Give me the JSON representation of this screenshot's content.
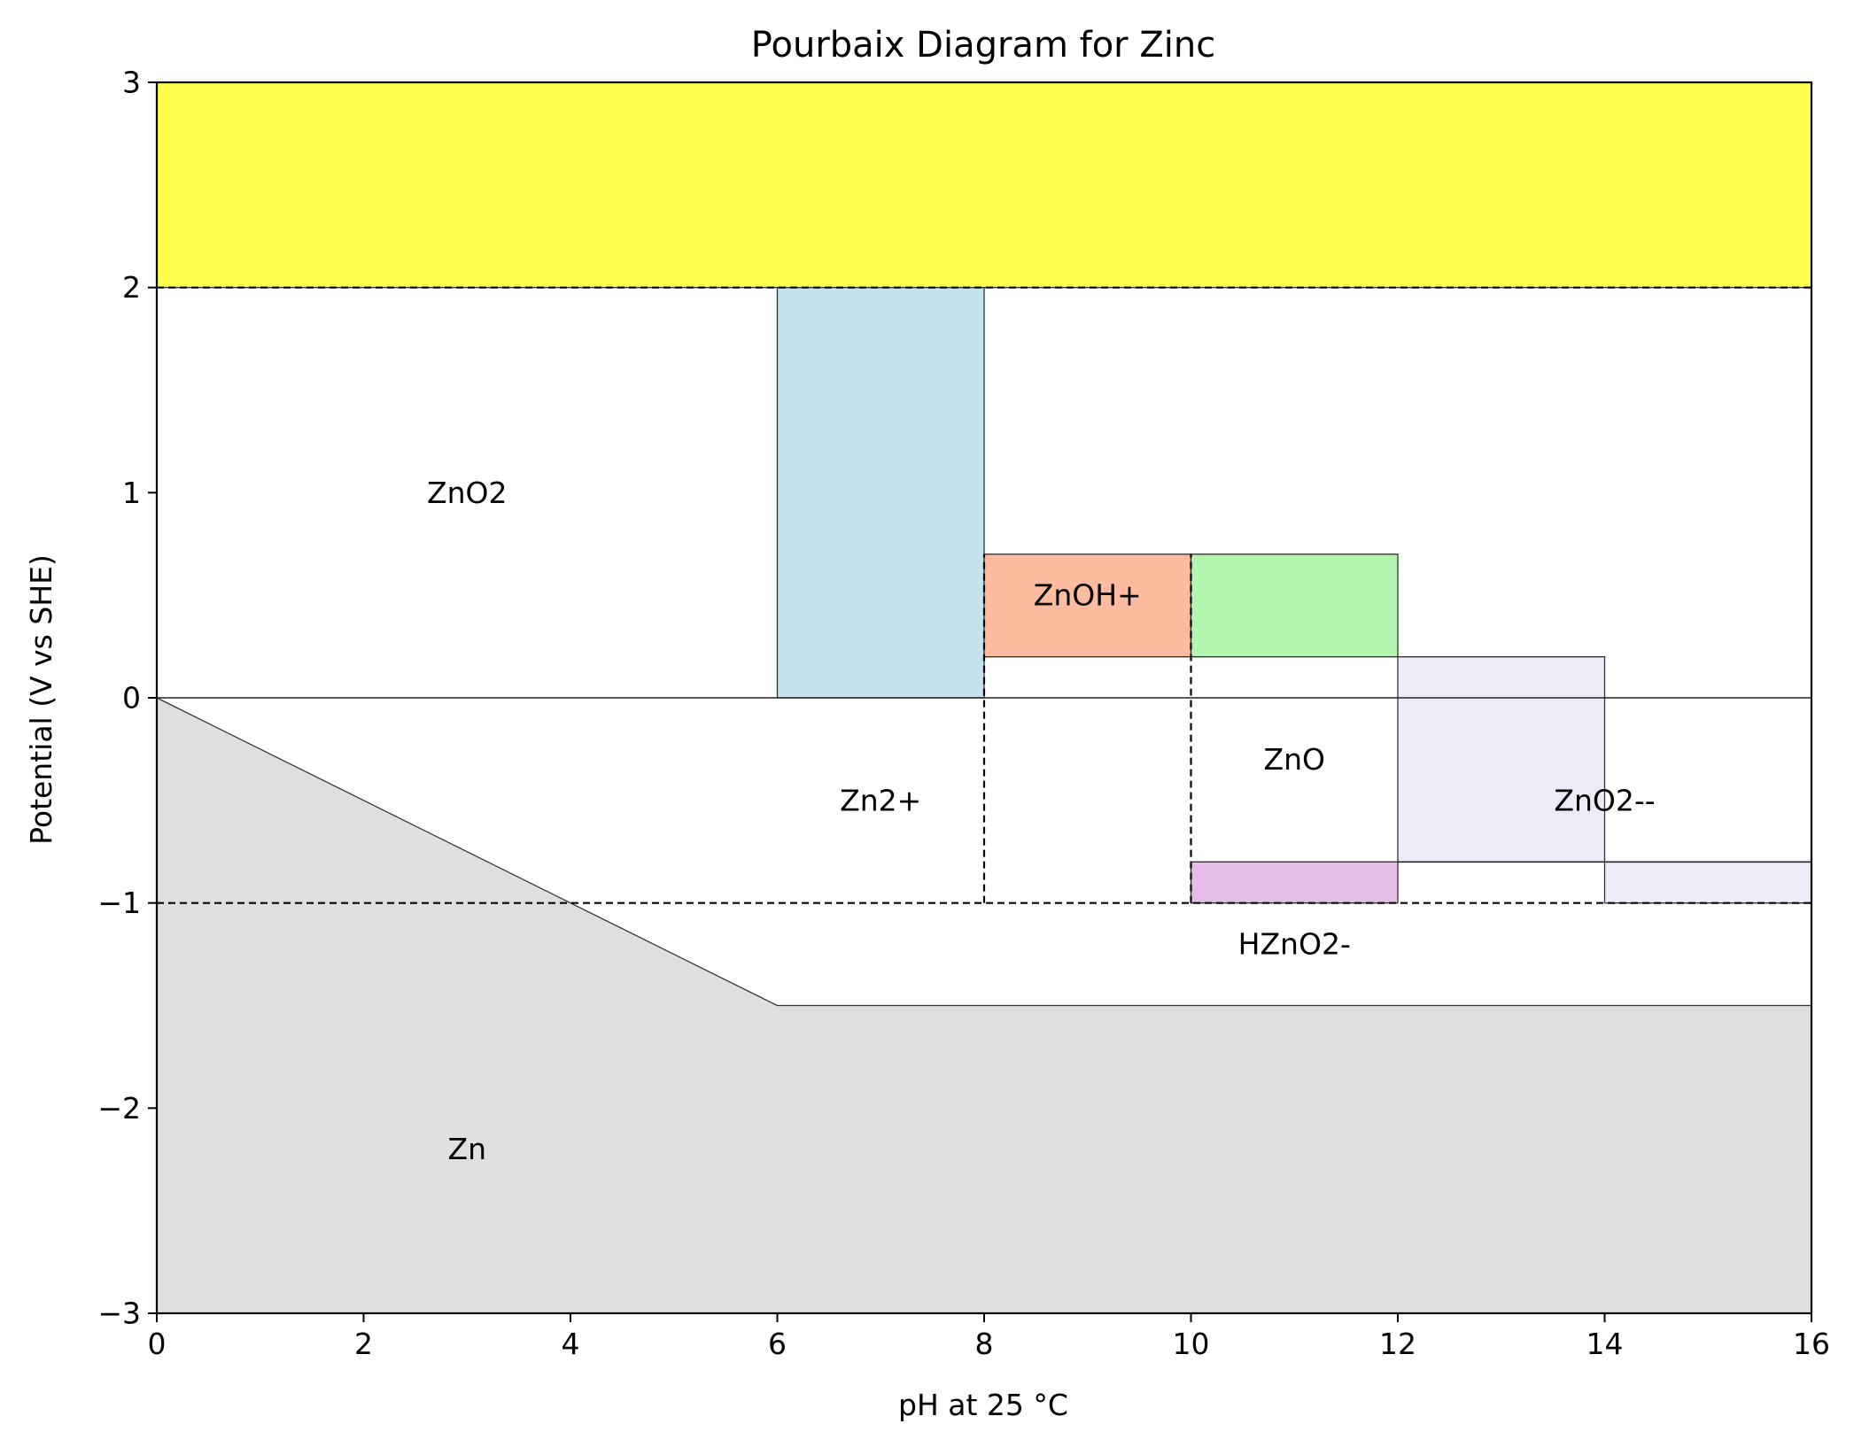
{
  "chart_data": {
    "type": "area",
    "title": "Pourbaix Diagram for Zinc",
    "xlabel": "pH at 25 °C",
    "ylabel": "Potential (V vs SHE)",
    "xlim": [
      0,
      16
    ],
    "ylim": [
      -3,
      3
    ],
    "xticks": [
      0,
      2,
      4,
      6,
      8,
      10,
      12,
      14,
      16
    ],
    "yticks": [
      -3,
      -2,
      -1,
      0,
      1,
      2,
      3
    ],
    "grid": false,
    "regions": [
      {
        "polygon": [
          [
            0,
            2
          ],
          [
            16,
            2
          ],
          [
            16,
            3
          ],
          [
            0,
            3
          ]
        ],
        "color": "#ffff4d"
      },
      {
        "polygon": [
          [
            0,
            0
          ],
          [
            6,
            -1.5
          ],
          [
            16,
            -1.5
          ],
          [
            16,
            -3
          ],
          [
            0,
            -3
          ]
        ],
        "color": "#dfdfdf"
      },
      {
        "polygon": [
          [
            6,
            0
          ],
          [
            8,
            0
          ],
          [
            8,
            2
          ],
          [
            6,
            2
          ]
        ],
        "color": "#c5e3ec"
      },
      {
        "polygon": [
          [
            8,
            0.2
          ],
          [
            10,
            0.2
          ],
          [
            10,
            0.7
          ],
          [
            8,
            0.7
          ]
        ],
        "color": "#fdbba0"
      },
      {
        "polygon": [
          [
            10,
            0.2
          ],
          [
            12,
            0.2
          ],
          [
            12,
            0.7
          ],
          [
            10,
            0.7
          ]
        ],
        "color": "#b3f5b1"
      },
      {
        "polygon": [
          [
            12,
            -0.8
          ],
          [
            14,
            -0.8
          ],
          [
            14,
            0.2
          ],
          [
            12,
            0.2
          ]
        ],
        "color": "#ececf9"
      },
      {
        "polygon": [
          [
            14,
            -1
          ],
          [
            16,
            -1
          ],
          [
            16,
            -0.8
          ],
          [
            14,
            -0.8
          ]
        ],
        "color": "#ececf9"
      },
      {
        "polygon": [
          [
            10,
            -1
          ],
          [
            12,
            -1
          ],
          [
            12,
            -0.8
          ],
          [
            10,
            -0.8
          ]
        ],
        "color": "#e5bde6"
      }
    ],
    "solid_lines": [
      {
        "x": [
          0,
          16
        ],
        "y": [
          0,
          0
        ]
      },
      {
        "x": [
          12,
          16
        ],
        "y": [
          -0.8,
          -0.8
        ]
      }
    ],
    "dashed_lines": [
      {
        "x": [
          0,
          16
        ],
        "y": [
          2,
          2
        ]
      },
      {
        "x": [
          0,
          16
        ],
        "y": [
          -1,
          -1
        ]
      },
      {
        "x": [
          8,
          8
        ],
        "y": [
          -1,
          0.7
        ]
      },
      {
        "x": [
          10,
          10
        ],
        "y": [
          -1,
          0.7
        ]
      }
    ],
    "labels": [
      {
        "text": "ZnO2",
        "x": 3,
        "y": 1
      },
      {
        "text": "ZnOH+",
        "x": 9,
        "y": 0.5
      },
      {
        "text": "ZnO",
        "x": 11,
        "y": -0.3
      },
      {
        "text": "Zn2+",
        "x": 7,
        "y": -0.5
      },
      {
        "text": "ZnO2--",
        "x": 14,
        "y": -0.5
      },
      {
        "text": "HZnO2-",
        "x": 11,
        "y": -1.2
      },
      {
        "text": "Zn",
        "x": 3,
        "y": -2.2
      }
    ]
  }
}
